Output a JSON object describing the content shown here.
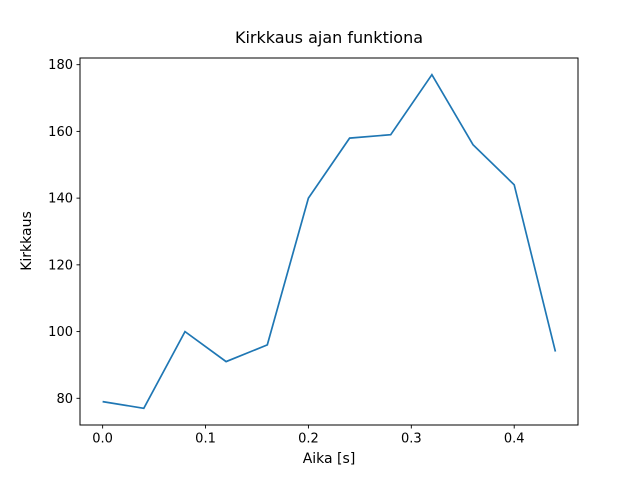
{
  "chart_data": {
    "type": "line",
    "title": "Kirkkaus ajan funktiona",
    "xlabel": "Aika [s]",
    "ylabel": "Kirkkaus",
    "x": [
      0.0,
      0.04,
      0.08,
      0.12,
      0.16,
      0.2,
      0.24,
      0.28,
      0.32,
      0.36,
      0.4,
      0.44
    ],
    "y": [
      79,
      77,
      100,
      91,
      96,
      140,
      158,
      159,
      177,
      156,
      144,
      94
    ],
    "xlim": [
      -0.022,
      0.462
    ],
    "ylim": [
      72,
      182
    ],
    "x_ticks": [
      0.0,
      0.1,
      0.2,
      0.3,
      0.4
    ],
    "x_tick_labels": [
      "0.0",
      "0.1",
      "0.2",
      "0.3",
      "0.4"
    ],
    "y_ticks": [
      80,
      100,
      120,
      140,
      160,
      180
    ],
    "y_tick_labels": [
      "80",
      "100",
      "120",
      "140",
      "160",
      "180"
    ],
    "grid": false,
    "legend": "none",
    "line_color": "#1f77b4",
    "line_width": 1.7,
    "axis_color": "#000000",
    "background_color": "#ffffff"
  }
}
